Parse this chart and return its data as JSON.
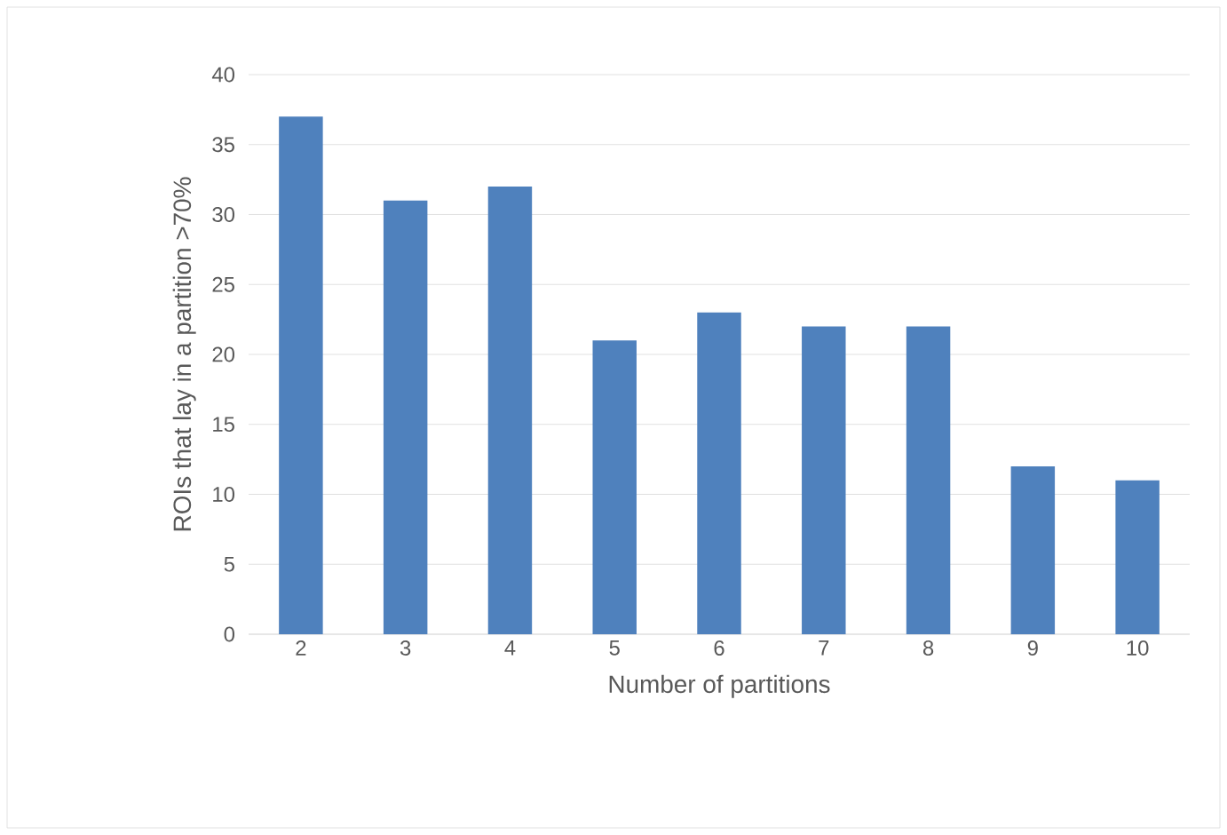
{
  "chart_data": {
    "type": "bar",
    "xlabel": "Number of partitions",
    "ylabel": "ROIs that lay in a partition >70%",
    "categories": [
      "2",
      "3",
      "4",
      "5",
      "6",
      "7",
      "8",
      "9",
      "10"
    ],
    "values": [
      37,
      31,
      32,
      21,
      23,
      22,
      22,
      12,
      11
    ],
    "color": "#4f81bd",
    "ylim": [
      0,
      40
    ],
    "yticks": [
      0,
      5,
      10,
      15,
      20,
      25,
      30,
      35,
      40
    ],
    "grid": "y"
  }
}
